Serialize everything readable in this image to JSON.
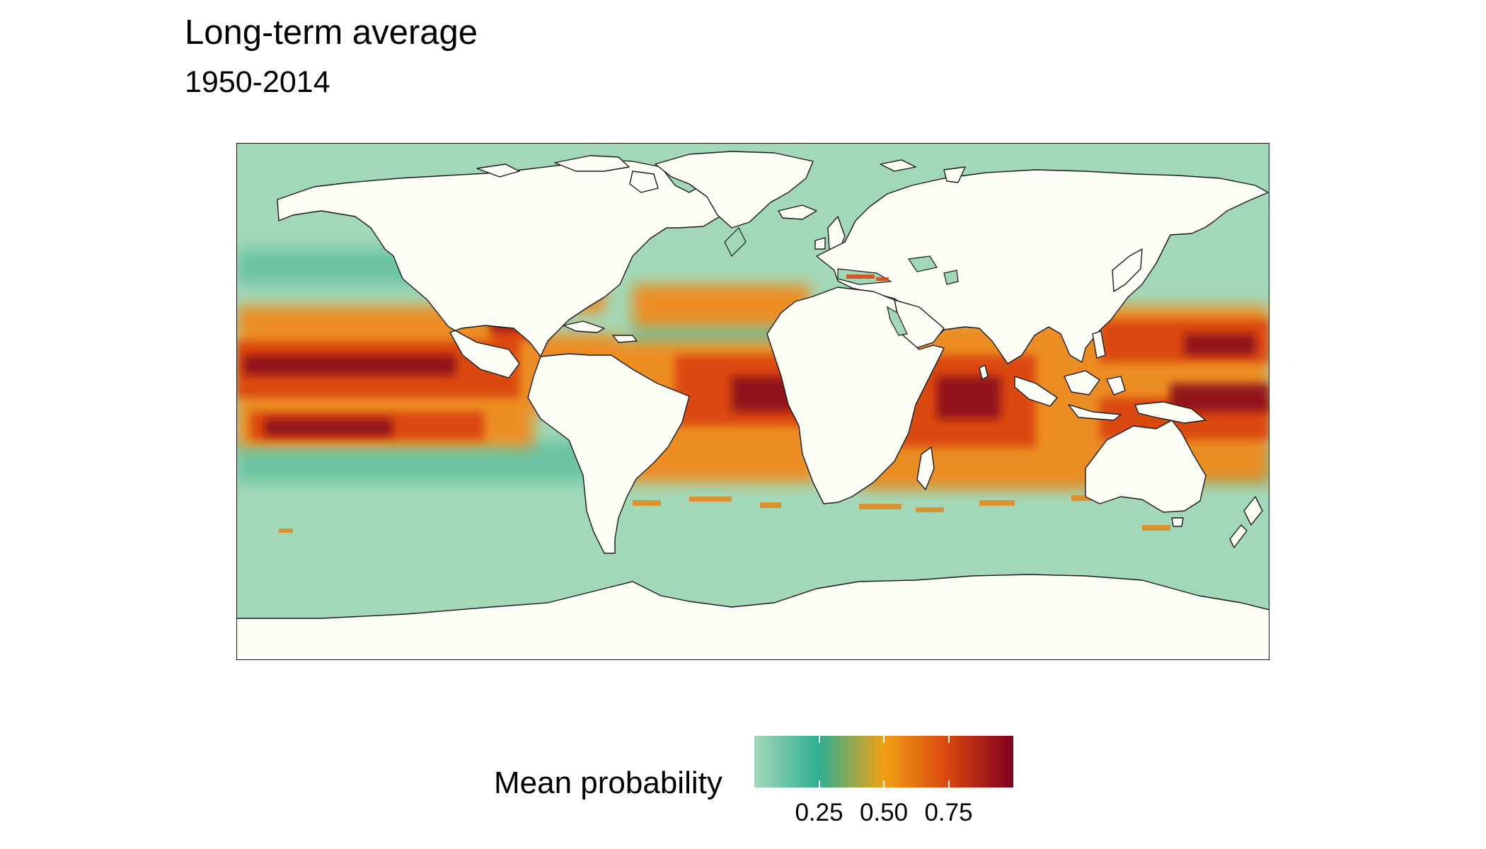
{
  "title": "Long-term average",
  "subtitle": "1950-2014",
  "legend": {
    "title": "Mean probability",
    "ticks": [
      "0.25",
      "0.50",
      "0.75"
    ],
    "tick_values": [
      0.25,
      0.5,
      0.75
    ],
    "range": [
      0,
      1
    ],
    "colors": [
      "#a2d8b8",
      "#2fae90",
      "#f2a015",
      "#d8450f",
      "#800020"
    ]
  },
  "map": {
    "projection": "equirectangular",
    "longitude_range": [
      -180,
      180
    ],
    "ocean_base_color": "#a2d8b8",
    "land_color": "#fcfdf5",
    "coastline_color": "#1a1a1a"
  }
}
